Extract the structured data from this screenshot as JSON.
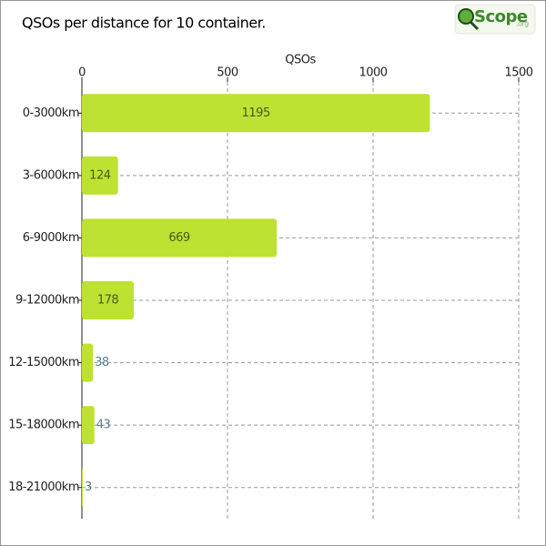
{
  "chart_data": {
    "type": "hbar",
    "title": "QSOs per distance for 10 container.",
    "logo": {
      "text": "Scope",
      "suffix": ".org"
    },
    "x_label": "QSOs",
    "categories": [
      "0-3000km",
      "3-6000km",
      "6-9000km",
      "9-12000km",
      "12-15000km",
      "15-18000km",
      "18-21000km"
    ],
    "values": [
      1195,
      124,
      669,
      178,
      38,
      43,
      3
    ],
    "color": "#bde232",
    "xlim": [
      0,
      1500
    ],
    "xticks": [
      0,
      500,
      1000,
      1500
    ],
    "grid": true
  }
}
